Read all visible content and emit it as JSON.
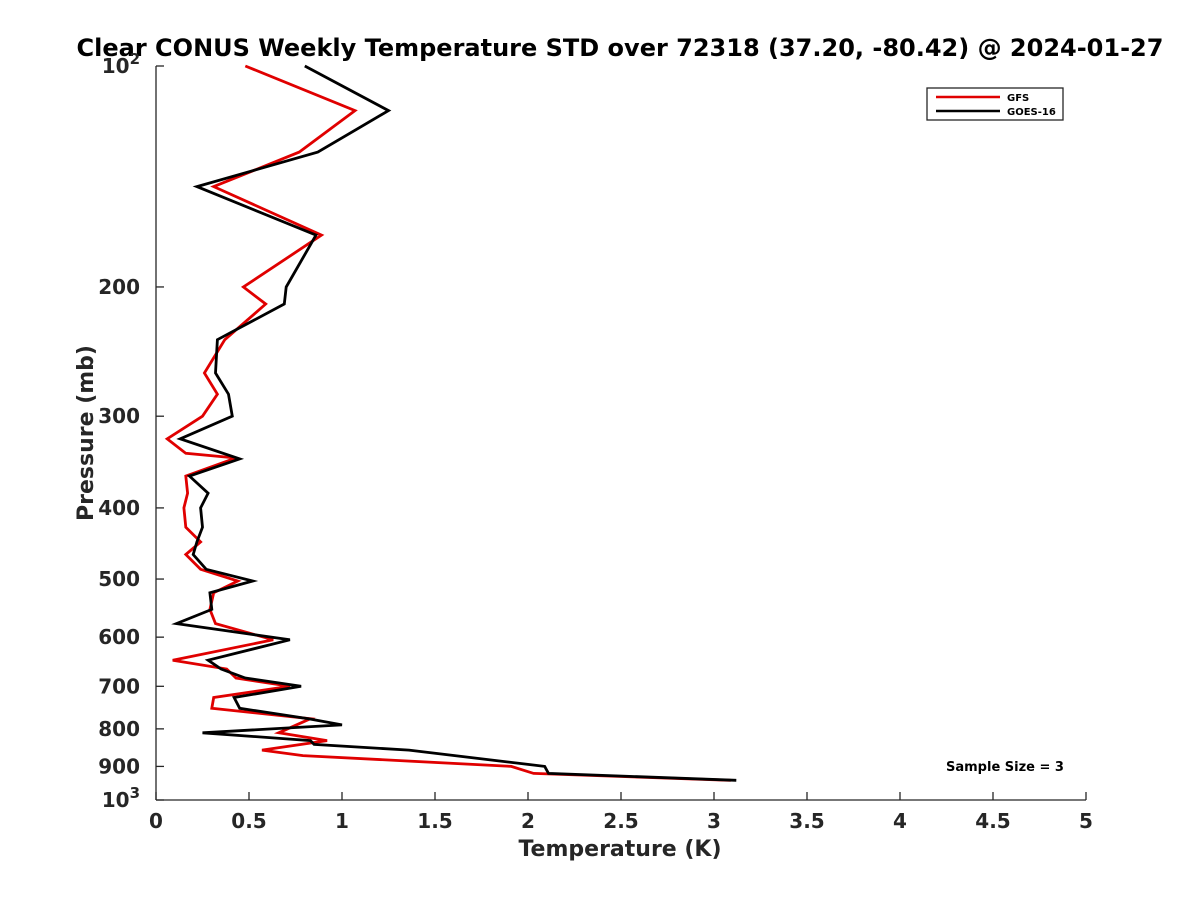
{
  "chart_data": {
    "type": "line",
    "title": "Clear CONUS Weekly Temperature STD over 72318 (37.20, -80.42) @ 2024-01-27",
    "xlabel": "Temperature (K)",
    "ylabel": "Pressure (mb)",
    "xlim": [
      0,
      5
    ],
    "ylim": [
      100,
      1000
    ],
    "y_scale": "log",
    "y_reversed": true,
    "x_ticks": [
      "0",
      "0.5",
      "1",
      "1.5",
      "2",
      "2.5",
      "3",
      "3.5",
      "4",
      "4.5",
      "5"
    ],
    "x_tick_values": [
      0,
      0.5,
      1,
      1.5,
      2,
      2.5,
      3,
      3.5,
      4,
      4.5,
      5
    ],
    "y_ticks": [
      {
        "value": 100,
        "base": "10",
        "exp": "2"
      },
      {
        "value": 200,
        "label": "200"
      },
      {
        "value": 300,
        "label": "300"
      },
      {
        "value": 400,
        "label": "400"
      },
      {
        "value": 500,
        "label": "500"
      },
      {
        "value": 600,
        "label": "600"
      },
      {
        "value": 700,
        "label": "700"
      },
      {
        "value": 800,
        "label": "800"
      },
      {
        "value": 900,
        "label": "900"
      },
      {
        "value": 1000,
        "base": "10",
        "exp": "3"
      }
    ],
    "grid": false,
    "legend_position": "top-right",
    "annotation": "Sample Size = 3",
    "series": [
      {
        "name": "GFS",
        "color": "#e00000",
        "points": [
          [
            0.48,
            100
          ],
          [
            1.07,
            115
          ],
          [
            0.77,
            131
          ],
          [
            0.31,
            146
          ],
          [
            0.89,
            170
          ],
          [
            0.47,
            200
          ],
          [
            0.59,
            211
          ],
          [
            0.37,
            236
          ],
          [
            0.26,
            262
          ],
          [
            0.33,
            280
          ],
          [
            0.25,
            300
          ],
          [
            0.06,
            322
          ],
          [
            0.16,
            337
          ],
          [
            0.43,
            342
          ],
          [
            0.16,
            362
          ],
          [
            0.17,
            382
          ],
          [
            0.15,
            400
          ],
          [
            0.16,
            425
          ],
          [
            0.24,
            445
          ],
          [
            0.16,
            463
          ],
          [
            0.24,
            485
          ],
          [
            0.44,
            503
          ],
          [
            0.31,
            522
          ],
          [
            0.29,
            550
          ],
          [
            0.32,
            575
          ],
          [
            0.63,
            605
          ],
          [
            0.09,
            645
          ],
          [
            0.38,
            663
          ],
          [
            0.43,
            682
          ],
          [
            0.72,
            700
          ],
          [
            0.31,
            725
          ],
          [
            0.3,
            750
          ],
          [
            0.83,
            775
          ],
          [
            0.66,
            810
          ],
          [
            0.92,
            830
          ],
          [
            0.57,
            855
          ],
          [
            0.79,
            870
          ],
          [
            1.91,
            900
          ],
          [
            2.03,
            920
          ],
          [
            3.09,
            940
          ]
        ]
      },
      {
        "name": "GOES-16",
        "color": "#000000",
        "points": [
          [
            0.8,
            100
          ],
          [
            1.25,
            115
          ],
          [
            0.87,
            131
          ],
          [
            0.22,
            146
          ],
          [
            0.86,
            170
          ],
          [
            0.7,
            200
          ],
          [
            0.69,
            211
          ],
          [
            0.33,
            236
          ],
          [
            0.32,
            262
          ],
          [
            0.39,
            280
          ],
          [
            0.41,
            300
          ],
          [
            0.13,
            322
          ],
          [
            0.45,
            343
          ],
          [
            0.18,
            362
          ],
          [
            0.28,
            382
          ],
          [
            0.24,
            400
          ],
          [
            0.25,
            425
          ],
          [
            0.22,
            445
          ],
          [
            0.2,
            463
          ],
          [
            0.27,
            485
          ],
          [
            0.52,
            503
          ],
          [
            0.29,
            522
          ],
          [
            0.3,
            550
          ],
          [
            0.11,
            575
          ],
          [
            0.72,
            605
          ],
          [
            0.28,
            645
          ],
          [
            0.35,
            663
          ],
          [
            0.48,
            682
          ],
          [
            0.78,
            700
          ],
          [
            0.42,
            725
          ],
          [
            0.45,
            750
          ],
          [
            0.82,
            775
          ],
          [
            1.0,
            790
          ],
          [
            0.25,
            810
          ],
          [
            0.83,
            830
          ],
          [
            0.85,
            840
          ],
          [
            1.36,
            855
          ],
          [
            2.09,
            900
          ],
          [
            2.11,
            920
          ],
          [
            3.12,
            940
          ]
        ]
      }
    ]
  }
}
